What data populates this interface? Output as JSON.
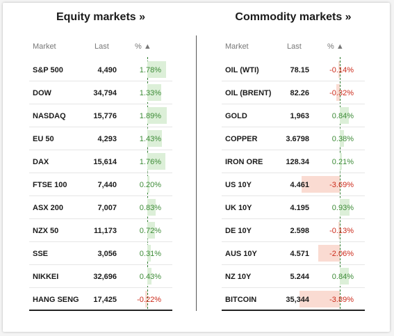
{
  "equity": {
    "title": "Equity markets »",
    "headers": {
      "market": "Market",
      "last": "Last",
      "pct": "% ▲"
    },
    "rows": [
      {
        "name": "S&P 500",
        "last": "4,490",
        "pct": "1.78%",
        "value": 1.78
      },
      {
        "name": "DOW",
        "last": "34,794",
        "pct": "1.33%",
        "value": 1.33
      },
      {
        "name": "NASDAQ",
        "last": "15,776",
        "pct": "1.89%",
        "value": 1.89
      },
      {
        "name": "EU 50",
        "last": "4,293",
        "pct": "1.43%",
        "value": 1.43
      },
      {
        "name": "DAX",
        "last": "15,614",
        "pct": "1.76%",
        "value": 1.76
      },
      {
        "name": "FTSE 100",
        "last": "7,440",
        "pct": "0.20%",
        "value": 0.2
      },
      {
        "name": "ASX 200",
        "last": "7,007",
        "pct": "0.83%",
        "value": 0.83
      },
      {
        "name": "NZX 50",
        "last": "11,173",
        "pct": "0.72%",
        "value": 0.72
      },
      {
        "name": "SSE",
        "last": "3,056",
        "pct": "0.31%",
        "value": 0.31
      },
      {
        "name": "NIKKEI",
        "last": "32,696",
        "pct": "0.43%",
        "value": 0.43
      },
      {
        "name": "HANG SENG",
        "last": "17,425",
        "pct": "-0.22%",
        "value": -0.22
      }
    ]
  },
  "commodity": {
    "title": "Commodity markets »",
    "headers": {
      "market": "Market",
      "last": "Last",
      "pct": "% ▲"
    },
    "rows": [
      {
        "name": "OIL (WTI)",
        "last": "78.15",
        "pct": "-0.14%",
        "value": -0.14
      },
      {
        "name": "OIL (BRENT)",
        "last": "82.26",
        "pct": "-0.32%",
        "value": -0.32
      },
      {
        "name": "GOLD",
        "last": "1,963",
        "pct": "0.84%",
        "value": 0.84
      },
      {
        "name": "COPPER",
        "last": "3.6798",
        "pct": "0.38%",
        "value": 0.38
      },
      {
        "name": "IRON ORE",
        "last": "128.34",
        "pct": "0.21%",
        "value": 0.21
      },
      {
        "name": "US 10Y",
        "last": "4.461",
        "pct": "-3.69%",
        "value": -3.69
      },
      {
        "name": "UK 10Y",
        "last": "4.195",
        "pct": "0.93%",
        "value": 0.93
      },
      {
        "name": "DE 10Y",
        "last": "2.598",
        "pct": "-0.13%",
        "value": -0.13
      },
      {
        "name": "AUS 10Y",
        "last": "4.571",
        "pct": "-2.06%",
        "value": -2.06
      },
      {
        "name": "NZ 10Y",
        "last": "5.244",
        "pct": "0.84%",
        "value": 0.84
      },
      {
        "name": "BITCOIN",
        "last": "35,344",
        "pct": "-3.89%",
        "value": -3.89
      }
    ]
  },
  "colors": {
    "positive_text": "#3d8b37",
    "negative_text": "#cc2a1a",
    "positive_bar": "#dcefd8",
    "negative_bar": "#fadbd2"
  }
}
